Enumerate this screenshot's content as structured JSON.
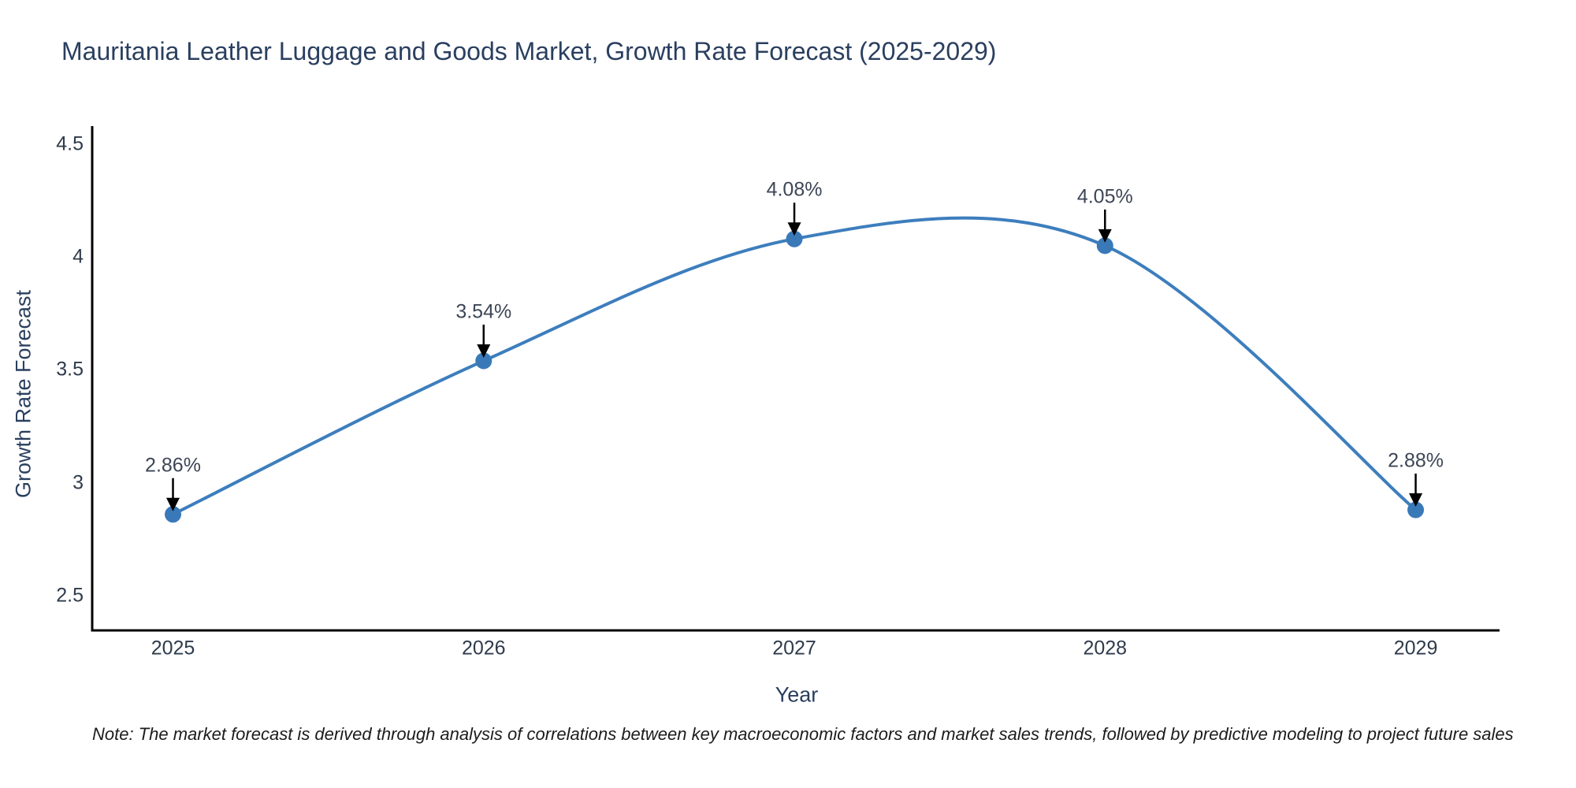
{
  "title": {
    "text": "Mauritania Leather Luggage and Goods Market, Growth Rate Forecast (2025-2029)",
    "color": "#2a3f5f"
  },
  "note": {
    "text": "Note: The market forecast is derived through analysis of correlations between key macroeconomic factors and market sales trends, followed by predictive modeling to project future sales"
  },
  "chart_data": {
    "type": "line",
    "title": "Mauritania Leather Luggage and Goods Market, Growth Rate Forecast (2025-2029)",
    "xlabel": "Year",
    "ylabel": "Growth Rate Forecast",
    "x": [
      2025,
      2026,
      2027,
      2028,
      2029
    ],
    "series": [
      {
        "name": "Growth Rate Forecast",
        "values": [
          2.86,
          3.54,
          4.08,
          4.05,
          2.88
        ]
      }
    ],
    "point_labels": [
      "2.86%",
      "3.54%",
      "4.08%",
      "4.05%",
      "2.88%"
    ],
    "xtick_labels": [
      "2025",
      "2026",
      "2027",
      "2028",
      "2029"
    ],
    "ytick_values": [
      2.5,
      3.0,
      3.5,
      4.0,
      4.5
    ],
    "ytick_labels": [
      "2.5",
      "3",
      "3.5",
      "4",
      "4.5"
    ],
    "xlim": [
      2024.74,
      2029.27
    ],
    "ylim": [
      2.346,
      4.58
    ],
    "line_shape": "spline",
    "grid": false,
    "legend_position": "none",
    "annotation_arrows": true,
    "colors": {
      "line": "#3d7ebd",
      "marker": "#3a79b8",
      "axis": "#000000",
      "tick_label": "#2f3b4c",
      "annotation": "#3d4656",
      "title": "#2a3f5f"
    }
  }
}
